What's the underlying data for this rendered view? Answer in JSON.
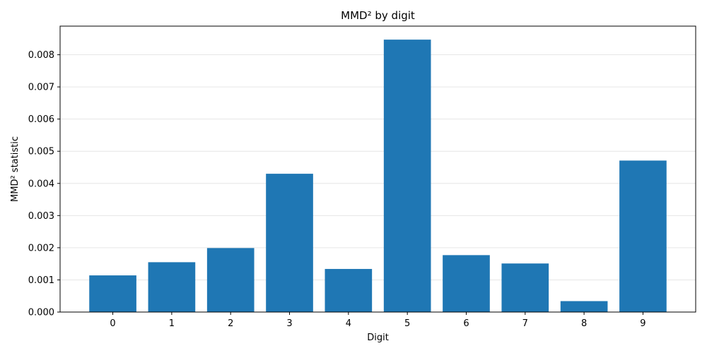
{
  "chart_data": {
    "type": "bar",
    "title": "MMD² by digit",
    "xlabel": "Digit",
    "ylabel": "MMD² statistic",
    "categories": [
      "0",
      "1",
      "2",
      "3",
      "4",
      "5",
      "6",
      "7",
      "8",
      "9"
    ],
    "values": [
      0.00114,
      0.00155,
      0.00199,
      0.0043,
      0.00134,
      0.00847,
      0.00177,
      0.00151,
      0.00034,
      0.00471
    ],
    "ylim": [
      0,
      0.00889
    ],
    "yticks": [
      0.0,
      0.001,
      0.002,
      0.003,
      0.004,
      0.005,
      0.006,
      0.007,
      0.008
    ],
    "ytick_labels": [
      "0.000",
      "0.001",
      "0.002",
      "0.003",
      "0.004",
      "0.005",
      "0.006",
      "0.007",
      "0.008"
    ],
    "grid": "y",
    "bar_color": "#1f77b4",
    "grid_color": "#e6e6e6"
  }
}
